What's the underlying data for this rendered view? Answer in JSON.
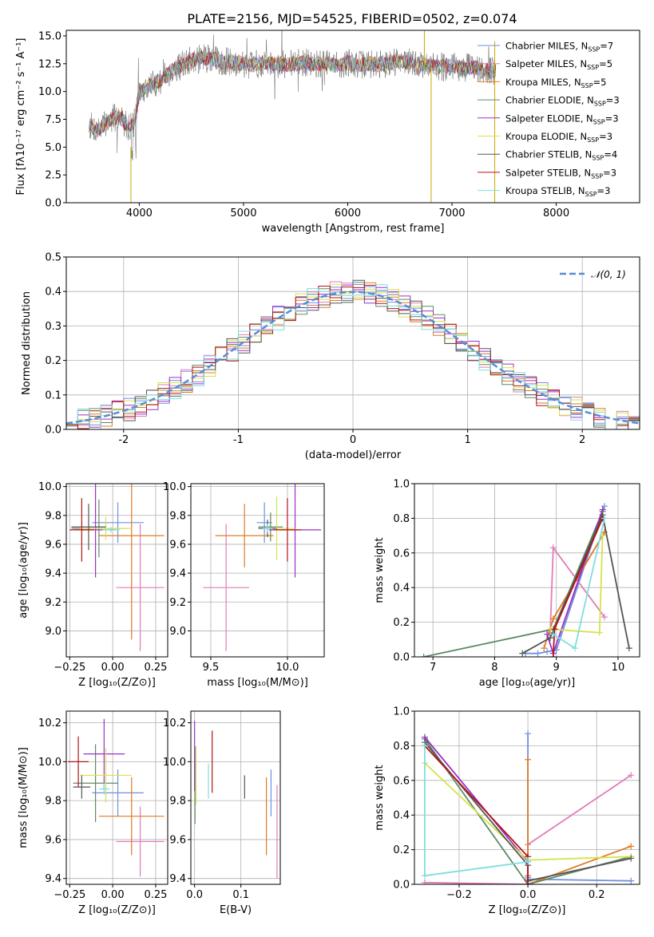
{
  "figure": {
    "title": "PLATE=2156, MJD=54525, FIBERID=0502, z=0.074"
  },
  "colors": {
    "Chabrier MILES": "#6f8fe0",
    "Salpeter MILES": "#e07cb8",
    "Kroupa MILES": "#e07b25",
    "Chabrier ELODIE": "#5f8a64",
    "Salpeter ELODIE": "#9b30c8",
    "Kroupa ELODIE": "#d6e24a",
    "Chabrier STELIB": "#555555",
    "Salpeter STELIB": "#b01515",
    "Kroupa STELIB": "#7fdde0"
  },
  "chart_data": [
    {
      "id": "spectrum",
      "type": "line",
      "xlabel": "wavelength [Angstrom, rest frame]",
      "ylabel": "Flux [fλ10⁻¹⁷ erg cm⁻² s⁻¹ A⁻¹]",
      "xlim": [
        3300,
        8800
      ],
      "ylim": [
        0,
        15.5
      ],
      "xticks": [
        4000,
        5000,
        6000,
        7000,
        8000
      ],
      "yticks": [
        0.0,
        2.5,
        5.0,
        7.5,
        10.0,
        12.5,
        15.0
      ],
      "legend_position": "top-right",
      "legend": [
        {
          "label": "Chabrier MILES, N",
          "sub": "SSP",
          "suffix": "=7"
        },
        {
          "label": "Salpeter MILES, N",
          "sub": "SSP",
          "suffix": "=5"
        },
        {
          "label": "Kroupa MILES, N",
          "sub": "SSP",
          "suffix": "=5"
        },
        {
          "label": "Chabrier ELODIE, N",
          "sub": "SSP",
          "suffix": "=3"
        },
        {
          "label": "Salpeter ELODIE, N",
          "sub": "SSP",
          "suffix": "=3"
        },
        {
          "label": "Kroupa ELODIE, N",
          "sub": "SSP",
          "suffix": "=3"
        },
        {
          "label": "Chabrier STELIB, N",
          "sub": "SSP",
          "suffix": "=4"
        },
        {
          "label": "Salpeter STELIB, N",
          "sub": "SSP",
          "suffix": "=3"
        },
        {
          "label": "Kroupa STELIB, N",
          "sub": "SSP",
          "suffix": "=3"
        }
      ],
      "data_spectrum_continuum": {
        "x": [
          3520,
          3600,
          3700,
          3800,
          3900,
          3950,
          4000,
          4100,
          4200,
          4300,
          4400,
          4500,
          4600,
          4700,
          4800,
          4900,
          5000,
          5100,
          5200,
          5300,
          5400,
          5500,
          5600,
          5700,
          5800,
          5900,
          6000,
          6100,
          6200,
          6300,
          6400,
          6500,
          6600,
          6700,
          6800,
          6900,
          7000,
          7100,
          7200,
          7300,
          7420
        ],
        "y": [
          7.0,
          6.5,
          7.3,
          7.8,
          6.8,
          7.2,
          9.8,
          10.5,
          11.0,
          11.8,
          12.3,
          12.8,
          13.0,
          12.9,
          12.7,
          12.6,
          12.5,
          12.4,
          12.6,
          12.5,
          12.4,
          12.5,
          12.6,
          12.4,
          12.5,
          12.3,
          12.6,
          12.4,
          12.5,
          12.4,
          12.6,
          12.8,
          12.5,
          12.4,
          12.3,
          12.2,
          12.3,
          12.1,
          12.2,
          12.0,
          11.8
        ]
      }
    },
    {
      "id": "residuals",
      "type": "line",
      "xlabel": "(data-model)/error",
      "ylabel": "Normed distribution",
      "xlim": [
        -2.5,
        2.5
      ],
      "ylim": [
        0,
        0.5
      ],
      "xticks": [
        -2,
        -1,
        0,
        1,
        2
      ],
      "yticks": [
        0.0,
        0.1,
        0.2,
        0.3,
        0.4,
        0.5
      ],
      "legend_position": "top-right",
      "legend_label": "𝒩(0, 1)",
      "gaussian": {
        "mean": 0,
        "sigma": 1,
        "color": "#5b8bd6"
      },
      "bin_width": 0.1,
      "bin_start": -2.5
    },
    {
      "id": "age_vs_Z",
      "type": "scatter",
      "xlabel": "Z [log₁₀(Z/Z⊙)]",
      "ylabel": "age  [log₁₀(age/yr)]",
      "xlim": [
        -0.27,
        0.32
      ],
      "ylim": [
        8.82,
        10.02
      ],
      "xticks": [
        -0.25,
        0.0,
        0.25
      ],
      "xticklabels": [
        "−0.25",
        "0.00",
        "0.25"
      ],
      "yticks": [
        9.0,
        9.2,
        9.4,
        9.6,
        9.8,
        10.0
      ],
      "points": [
        {
          "model": "Chabrier MILES",
          "x": 0.03,
          "y": 9.75,
          "xerr": 0.15,
          "yerr": 0.14
        },
        {
          "model": "Salpeter MILES",
          "x": 0.16,
          "y": 9.3,
          "xerr": 0.14,
          "yerr": 0.44
        },
        {
          "model": "Kroupa MILES",
          "x": 0.11,
          "y": 9.66,
          "xerr": 0.19,
          "yerr": 0.72
        },
        {
          "model": "Chabrier ELODIE",
          "x": -0.08,
          "y": 9.71,
          "xerr": 0.16,
          "yerr": 0.2
        },
        {
          "model": "Salpeter ELODIE",
          "x": -0.1,
          "y": 9.7,
          "xerr": 0.12,
          "yerr": 0.33
        },
        {
          "model": "Kroupa ELODIE",
          "x": -0.04,
          "y": 9.71,
          "xerr": 0.15,
          "yerr": 0.08
        },
        {
          "model": "Chabrier STELIB",
          "x": -0.14,
          "y": 9.72,
          "xerr": 0.1,
          "yerr": 0.16
        },
        {
          "model": "Salpeter STELIB",
          "x": -0.18,
          "y": 9.7,
          "xerr": 0.07,
          "yerr": 0.22
        },
        {
          "model": "Kroupa STELIB",
          "x": -0.01,
          "y": 9.7,
          "xerr": 0.05,
          "yerr": 0.02
        }
      ]
    },
    {
      "id": "age_vs_mass",
      "type": "scatter",
      "xlabel": "mass [log₁₀(M/M⊙)]",
      "ylabel": "",
      "xlim": [
        9.37,
        10.24
      ],
      "ylim": [
        8.82,
        10.02
      ],
      "xticks": [
        9.5,
        10.0
      ],
      "xticklabels": [
        "9.5",
        "10.0"
      ],
      "yticks": [
        9.0,
        9.2,
        9.4,
        9.6,
        9.8,
        10.0
      ],
      "points": [
        {
          "model": "Chabrier MILES",
          "x": 9.85,
          "y": 9.75,
          "xerr": 0.05,
          "yerr": 0.14
        },
        {
          "model": "Salpeter MILES",
          "x": 9.6,
          "y": 9.3,
          "xerr": 0.15,
          "yerr": 0.44
        },
        {
          "model": "Kroupa MILES",
          "x": 9.72,
          "y": 9.66,
          "xerr": 0.19,
          "yerr": 0.22
        },
        {
          "model": "Chabrier ELODIE",
          "x": 9.89,
          "y": 9.72,
          "xerr": 0.08,
          "yerr": 0.1
        },
        {
          "model": "Salpeter ELODIE",
          "x": 10.05,
          "y": 9.7,
          "xerr": 0.17,
          "yerr": 0.33
        },
        {
          "model": "Kroupa ELODIE",
          "x": 9.93,
          "y": 9.71,
          "xerr": 0.12,
          "yerr": 0.22
        },
        {
          "model": "Chabrier STELIB",
          "x": 9.87,
          "y": 9.71,
          "xerr": 0.06,
          "yerr": 0.06
        },
        {
          "model": "Salpeter STELIB",
          "x": 10.0,
          "y": 9.7,
          "xerr": 0.09,
          "yerr": 0.22
        },
        {
          "model": "Kroupa STELIB",
          "x": 9.87,
          "y": 9.71,
          "xerr": 0.03,
          "yerr": 0.03
        }
      ]
    },
    {
      "id": "weight_vs_age",
      "type": "line",
      "xlabel": "age  [log₁₀(age/yr)]",
      "ylabel": "mass weight",
      "xlim": [
        6.7,
        10.35
      ],
      "ylim": [
        0,
        1.0
      ],
      "xticks": [
        7,
        8,
        9,
        10
      ],
      "yticks": [
        0.0,
        0.2,
        0.4,
        0.6,
        0.8,
        1.0
      ],
      "series": [
        {
          "model": "Chabrier MILES",
          "x": [
            8.5,
            8.7,
            8.85,
            9.0,
            9.78
          ],
          "y": [
            0.02,
            0.02,
            0.03,
            0.04,
            0.87
          ]
        },
        {
          "model": "Salpeter MILES",
          "x": [
            8.9,
            8.95,
            9.78
          ],
          "y": [
            0.14,
            0.63,
            0.23
          ]
        },
        {
          "model": "Kroupa MILES",
          "x": [
            8.8,
            8.95,
            9.78
          ],
          "y": [
            0.05,
            0.22,
            0.72
          ]
        },
        {
          "model": "Chabrier ELODIE",
          "x": [
            6.85,
            8.95,
            9.75
          ],
          "y": [
            0.0,
            0.16,
            0.84
          ]
        },
        {
          "model": "Salpeter ELODIE",
          "x": [
            8.85,
            8.95,
            9.75
          ],
          "y": [
            0.13,
            0.02,
            0.85
          ]
        },
        {
          "model": "Kroupa ELODIE",
          "x": [
            8.9,
            9.7,
            9.75
          ],
          "y": [
            0.16,
            0.14,
            0.7
          ]
        },
        {
          "model": "Chabrier STELIB",
          "x": [
            8.45,
            8.9,
            9.75,
            10.18
          ],
          "y": [
            0.02,
            0.11,
            0.82,
            0.05
          ]
        },
        {
          "model": "Salpeter STELIB",
          "x": [
            8.95,
            8.97,
            9.75
          ],
          "y": [
            0.0,
            0.16,
            0.8
          ]
        },
        {
          "model": "Kroupa STELIB",
          "x": [
            8.95,
            9.3,
            9.78
          ],
          "y": [
            0.13,
            0.05,
            0.8
          ]
        }
      ]
    },
    {
      "id": "mass_vs_Z",
      "type": "scatter",
      "xlabel": "Z [log₁₀(Z/Z⊙)]",
      "ylabel": "mass [log₁₀(M/M⊙)]",
      "xlim": [
        -0.27,
        0.32
      ],
      "ylim": [
        9.37,
        10.26
      ],
      "xticks": [
        -0.25,
        0.0,
        0.25
      ],
      "xticklabels": [
        "−0.25",
        "0.00",
        "0.25"
      ],
      "yticks": [
        9.4,
        9.6,
        9.8,
        10.0,
        10.2
      ],
      "points": [
        {
          "model": "Chabrier MILES",
          "x": 0.03,
          "y": 9.84,
          "xerr": 0.15,
          "yerr": 0.12
        },
        {
          "model": "Salpeter MILES",
          "x": 0.16,
          "y": 9.59,
          "xerr": 0.14,
          "yerr": 0.18
        },
        {
          "model": "Kroupa MILES",
          "x": 0.11,
          "y": 9.72,
          "xerr": 0.19,
          "yerr": 0.2
        },
        {
          "model": "Chabrier ELODIE",
          "x": -0.1,
          "y": 9.89,
          "xerr": 0.13,
          "yerr": 0.2
        },
        {
          "model": "Salpeter ELODIE",
          "x": -0.05,
          "y": 10.04,
          "xerr": 0.12,
          "yerr": 0.18
        },
        {
          "model": "Kroupa ELODIE",
          "x": -0.04,
          "y": 9.93,
          "xerr": 0.15,
          "yerr": 0.14
        },
        {
          "model": "Chabrier STELIB",
          "x": -0.18,
          "y": 9.87,
          "xerr": 0.05,
          "yerr": 0.06
        },
        {
          "model": "Salpeter STELIB",
          "x": -0.2,
          "y": 10.0,
          "xerr": 0.06,
          "yerr": 0.13
        },
        {
          "model": "Kroupa STELIB",
          "x": -0.05,
          "y": 9.86,
          "xerr": 0.03,
          "yerr": 0.03
        }
      ]
    },
    {
      "id": "mass_vs_ebv",
      "type": "scatter",
      "xlabel": "E(B-V)",
      "ylabel": "",
      "xlim": [
        -0.008,
        0.185
      ],
      "ylim": [
        9.37,
        10.26
      ],
      "xticks": [
        0.0,
        0.1
      ],
      "xticklabels": [
        "0.0",
        "0.1"
      ],
      "yticks": [
        9.4,
        9.6,
        9.8,
        10.0,
        10.2
      ],
      "points": [
        {
          "model": "Chabrier MILES",
          "x": 0.165,
          "y": 9.84,
          "yerr": 0.12
        },
        {
          "model": "Salpeter MILES",
          "x": 0.178,
          "y": 9.64,
          "yerr": 0.24
        },
        {
          "model": "Kroupa MILES",
          "x": 0.155,
          "y": 9.72,
          "yerr": 0.2
        },
        {
          "model": "Chabrier ELODIE",
          "x": 0.001,
          "y": 9.88,
          "yerr": 0.2
        },
        {
          "model": "Salpeter ELODIE",
          "x": 0.0,
          "y": 10.03,
          "yerr": 0.18
        },
        {
          "model": "Kroupa ELODIE",
          "x": 0.003,
          "y": 9.93,
          "yerr": 0.15
        },
        {
          "model": "Chabrier STELIB",
          "x": 0.108,
          "y": 9.87,
          "yerr": 0.06
        },
        {
          "model": "Salpeter STELIB",
          "x": 0.038,
          "y": 10.0,
          "yerr": 0.16
        },
        {
          "model": "Kroupa STELIB",
          "x": 0.03,
          "y": 9.9,
          "yerr": 0.09
        }
      ]
    },
    {
      "id": "weight_vs_Z",
      "type": "line",
      "xlabel": "Z [log₁₀(Z/Z⊙)]",
      "ylabel": "mass weight",
      "xlim": [
        -0.33,
        0.325
      ],
      "ylim": [
        0,
        1.0
      ],
      "xticks": [
        -0.2,
        0.0,
        0.2
      ],
      "xticklabels": [
        "−0.2",
        "0.0",
        "0.2"
      ],
      "yticks": [
        0.0,
        0.2,
        0.4,
        0.6,
        0.8,
        1.0
      ],
      "series": [
        {
          "model": "Chabrier MILES",
          "x": [
            0.0,
            0.0,
            0.0,
            0.3
          ],
          "y": [
            0.87,
            0.04,
            0.03,
            0.02
          ]
        },
        {
          "model": "Salpeter MILES",
          "x": [
            -0.3,
            0.0,
            0.0,
            0.3
          ],
          "y": [
            0.01,
            0.0,
            0.23,
            0.63
          ]
        },
        {
          "model": "Kroupa MILES",
          "x": [
            0.0,
            0.0,
            0.0,
            0.3
          ],
          "y": [
            0.72,
            0.05,
            0.0,
            0.22
          ]
        },
        {
          "model": "Chabrier ELODIE",
          "x": [
            -0.3,
            0.0,
            0.3
          ],
          "y": [
            0.84,
            0.0,
            0.16
          ]
        },
        {
          "model": "Salpeter ELODIE",
          "x": [
            -0.3,
            0.0,
            0.0
          ],
          "y": [
            0.85,
            0.13,
            0.02
          ]
        },
        {
          "model": "Kroupa ELODIE",
          "x": [
            -0.3,
            0.0,
            0.3
          ],
          "y": [
            0.7,
            0.14,
            0.16
          ]
        },
        {
          "model": "Chabrier STELIB",
          "x": [
            -0.3,
            0.0,
            0.0,
            0.3
          ],
          "y": [
            0.82,
            0.11,
            0.02,
            0.15
          ]
        },
        {
          "model": "Salpeter STELIB",
          "x": [
            -0.3,
            0.0,
            0.0
          ],
          "y": [
            0.8,
            0.16,
            0.0
          ]
        },
        {
          "model": "Kroupa STELIB",
          "x": [
            -0.3,
            -0.3,
            0.0,
            0.0
          ],
          "y": [
            0.8,
            0.05,
            0.13,
            0.14
          ]
        }
      ]
    }
  ]
}
